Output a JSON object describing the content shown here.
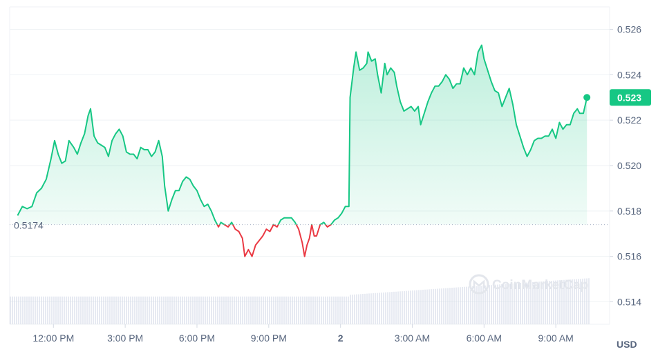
{
  "chart_data": {
    "type": "line",
    "unit": "USD",
    "reference_value": 0.5174,
    "reference_label": "0.5174",
    "last_price_label": "0.523",
    "watermark": "CoinMarketCap",
    "ylim": [
      0.5131,
      0.5266
    ],
    "y_ticks": [
      "0.526",
      "0.524",
      "0.522",
      "0.520",
      "0.518",
      "0.516",
      "0.514"
    ],
    "y_tick_values": [
      0.526,
      0.524,
      0.522,
      0.52,
      0.518,
      0.516,
      0.514
    ],
    "x_range": [
      10.2,
      34.7
    ],
    "x_ticks": [
      "12:00 PM",
      "3:00 PM",
      "6:00 PM",
      "9:00 PM",
      "2",
      "3:00 AM",
      "6:00 AM",
      "9:00 AM"
    ],
    "x_tick_values": [
      12,
      15,
      18,
      21,
      24,
      27,
      30,
      33
    ],
    "x_unit": "hours from midnight of day 1",
    "colors": {
      "up": "#16c784",
      "down": "#ea3943",
      "grid": "#eff2f5",
      "volume": "#cfd6e4"
    },
    "grid": true,
    "series": [
      {
        "values": [
          [
            10.5,
            0.5178
          ],
          [
            10.7,
            0.5182
          ],
          [
            10.9,
            0.5181
          ],
          [
            11.1,
            0.5182
          ],
          [
            11.3,
            0.5188
          ],
          [
            11.5,
            0.519
          ],
          [
            11.7,
            0.5194
          ],
          [
            11.9,
            0.5203
          ],
          [
            12.05,
            0.5211
          ],
          [
            12.2,
            0.5205
          ],
          [
            12.35,
            0.5201
          ],
          [
            12.5,
            0.5202
          ],
          [
            12.65,
            0.5211
          ],
          [
            12.85,
            0.5208
          ],
          [
            13.0,
            0.5205
          ],
          [
            13.15,
            0.521
          ],
          [
            13.3,
            0.5214
          ],
          [
            13.45,
            0.5222
          ],
          [
            13.55,
            0.5225
          ],
          [
            13.7,
            0.5213
          ],
          [
            13.85,
            0.521
          ],
          [
            14.0,
            0.5209
          ],
          [
            14.15,
            0.5208
          ],
          [
            14.3,
            0.5204
          ],
          [
            14.45,
            0.5211
          ],
          [
            14.6,
            0.5214
          ],
          [
            14.75,
            0.5216
          ],
          [
            14.9,
            0.5213
          ],
          [
            15.05,
            0.5206
          ],
          [
            15.2,
            0.5205
          ],
          [
            15.35,
            0.5205
          ],
          [
            15.5,
            0.5203
          ],
          [
            15.65,
            0.5208
          ],
          [
            15.8,
            0.5207
          ],
          [
            15.95,
            0.5207
          ],
          [
            16.1,
            0.5204
          ],
          [
            16.25,
            0.5206
          ],
          [
            16.4,
            0.5211
          ],
          [
            16.55,
            0.5204
          ],
          [
            16.65,
            0.5191
          ],
          [
            16.8,
            0.518
          ],
          [
            16.95,
            0.5185
          ],
          [
            17.1,
            0.5189
          ],
          [
            17.25,
            0.5189
          ],
          [
            17.4,
            0.5193
          ],
          [
            17.55,
            0.5195
          ],
          [
            17.7,
            0.5194
          ],
          [
            17.85,
            0.5191
          ],
          [
            18.0,
            0.5189
          ],
          [
            18.15,
            0.5185
          ],
          [
            18.3,
            0.5182
          ],
          [
            18.45,
            0.5183
          ],
          [
            18.6,
            0.518
          ],
          [
            18.75,
            0.5176
          ],
          [
            18.9,
            0.5173
          ],
          [
            19.0,
            0.5175
          ],
          [
            19.15,
            0.5174
          ],
          [
            19.3,
            0.5173
          ],
          [
            19.45,
            0.5175
          ],
          [
            19.6,
            0.5172
          ],
          [
            19.75,
            0.5171
          ],
          [
            19.9,
            0.5168
          ],
          [
            20.0,
            0.516
          ],
          [
            20.15,
            0.5163
          ],
          [
            20.3,
            0.516
          ],
          [
            20.45,
            0.5165
          ],
          [
            20.6,
            0.5167
          ],
          [
            20.75,
            0.5169
          ],
          [
            20.9,
            0.5172
          ],
          [
            21.05,
            0.5171
          ],
          [
            21.2,
            0.5174
          ],
          [
            21.35,
            0.5173
          ],
          [
            21.5,
            0.5176
          ],
          [
            21.65,
            0.5177
          ],
          [
            21.8,
            0.5177
          ],
          [
            21.95,
            0.5177
          ],
          [
            22.1,
            0.5175
          ],
          [
            22.25,
            0.5172
          ],
          [
            22.4,
            0.5166
          ],
          [
            22.5,
            0.516
          ],
          [
            22.6,
            0.5165
          ],
          [
            22.7,
            0.5168
          ],
          [
            22.8,
            0.5174
          ],
          [
            22.9,
            0.5169
          ],
          [
            23.0,
            0.5169
          ],
          [
            23.15,
            0.5174
          ],
          [
            23.3,
            0.5175
          ],
          [
            23.45,
            0.5173
          ],
          [
            23.6,
            0.5174
          ],
          [
            23.75,
            0.5176
          ],
          [
            23.9,
            0.5177
          ],
          [
            24.05,
            0.5179
          ],
          [
            24.2,
            0.5182
          ],
          [
            24.35,
            0.5182
          ],
          [
            24.4,
            0.523
          ],
          [
            24.55,
            0.5243
          ],
          [
            24.65,
            0.525
          ],
          [
            24.8,
            0.5242
          ],
          [
            24.95,
            0.5243
          ],
          [
            25.1,
            0.5245
          ],
          [
            25.15,
            0.525
          ],
          [
            25.3,
            0.5246
          ],
          [
            25.45,
            0.5247
          ],
          [
            25.55,
            0.524
          ],
          [
            25.7,
            0.5232
          ],
          [
            25.85,
            0.5245
          ],
          [
            25.95,
            0.524
          ],
          [
            26.1,
            0.5243
          ],
          [
            26.25,
            0.5241
          ],
          [
            26.35,
            0.5235
          ],
          [
            26.5,
            0.5228
          ],
          [
            26.65,
            0.5224
          ],
          [
            26.8,
            0.5225
          ],
          [
            26.95,
            0.5226
          ],
          [
            27.1,
            0.5224
          ],
          [
            27.25,
            0.5226
          ],
          [
            27.35,
            0.5218
          ],
          [
            27.5,
            0.5223
          ],
          [
            27.65,
            0.5228
          ],
          [
            27.8,
            0.5232
          ],
          [
            27.95,
            0.5235
          ],
          [
            28.1,
            0.5235
          ],
          [
            28.25,
            0.5237
          ],
          [
            28.4,
            0.524
          ],
          [
            28.55,
            0.5238
          ],
          [
            28.7,
            0.5234
          ],
          [
            28.85,
            0.5236
          ],
          [
            29.0,
            0.5236
          ],
          [
            29.15,
            0.5243
          ],
          [
            29.3,
            0.524
          ],
          [
            29.45,
            0.5243
          ],
          [
            29.6,
            0.524
          ],
          [
            29.75,
            0.525
          ],
          [
            29.9,
            0.5253
          ],
          [
            30.0,
            0.5247
          ],
          [
            30.15,
            0.5242
          ],
          [
            30.3,
            0.5237
          ],
          [
            30.45,
            0.5233
          ],
          [
            30.6,
            0.5232
          ],
          [
            30.75,
            0.5226
          ],
          [
            30.9,
            0.523
          ],
          [
            31.05,
            0.5234
          ],
          [
            31.2,
            0.5227
          ],
          [
            31.35,
            0.5218
          ],
          [
            31.5,
            0.5213
          ],
          [
            31.65,
            0.5208
          ],
          [
            31.8,
            0.5204
          ],
          [
            31.95,
            0.5207
          ],
          [
            32.1,
            0.5211
          ],
          [
            32.25,
            0.5212
          ],
          [
            32.4,
            0.5212
          ],
          [
            32.55,
            0.5213
          ],
          [
            32.7,
            0.5213
          ],
          [
            32.85,
            0.5216
          ],
          [
            33.0,
            0.5212
          ],
          [
            33.15,
            0.5219
          ],
          [
            33.3,
            0.5216
          ],
          [
            33.45,
            0.5218
          ],
          [
            33.6,
            0.5218
          ],
          [
            33.75,
            0.5223
          ],
          [
            33.9,
            0.5225
          ],
          [
            34.0,
            0.5223
          ],
          [
            34.15,
            0.5223
          ],
          [
            34.3,
            0.523
          ]
        ]
      }
    ],
    "volume": {
      "x_start": 10.2,
      "x_end": 34.4,
      "segments": [
        {
          "from": 10.2,
          "to": 24.35,
          "value": 0.514236
        },
        {
          "from": 24.35,
          "to": 34.4,
          "value_start": 0.514305,
          "value_end": 0.515042
        }
      ]
    }
  }
}
